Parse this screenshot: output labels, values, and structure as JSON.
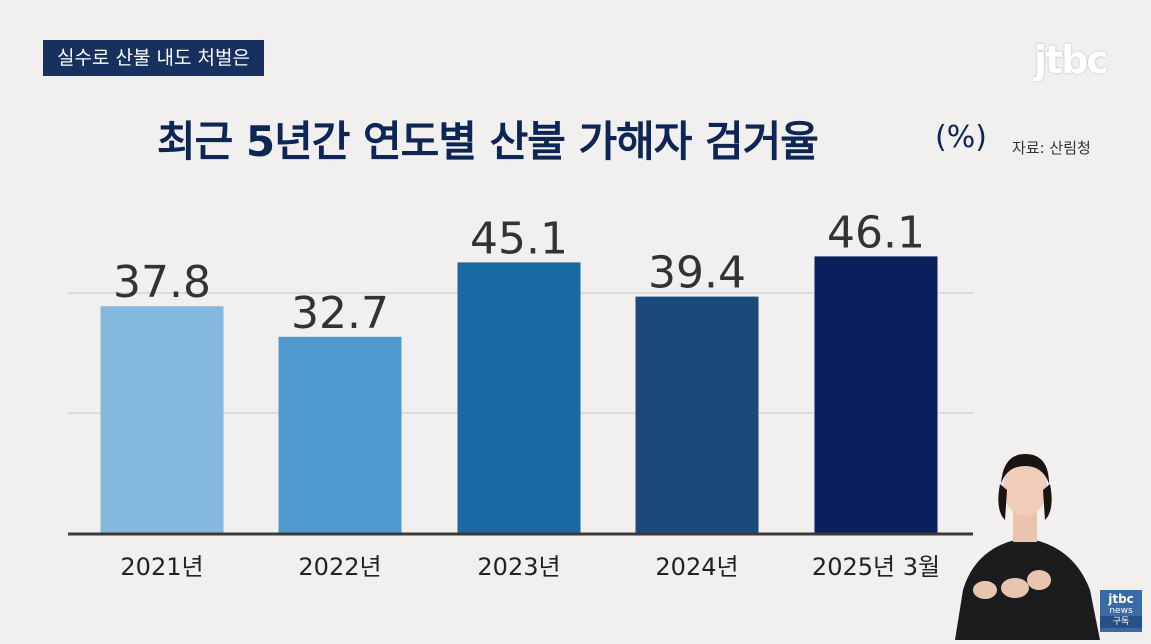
{
  "caption": "실수로 산불 내도 처벌은",
  "logo": "jtbc",
  "chart_data": {
    "type": "bar",
    "title": "최근 5년간 연도별 산불 가해자 검거율",
    "unit": "(%)",
    "source": "자료: 산림청",
    "categories": [
      "2021년",
      "2022년",
      "2023년",
      "2024년",
      "2025년 3월"
    ],
    "values": [
      37.8,
      32.7,
      45.1,
      39.4,
      46.1
    ],
    "value_labels": [
      "37.8",
      "32.7",
      "45.1",
      "39.4",
      "46.1"
    ],
    "colors": [
      "#85b9de",
      "#4f9bcf",
      "#1a69a3",
      "#1b4a7a",
      "#0b1f5e"
    ],
    "ylim": [
      0,
      50
    ],
    "grid": true
  },
  "badge": {
    "line1": "jtbc",
    "line2": "news",
    "line3": "구독"
  }
}
